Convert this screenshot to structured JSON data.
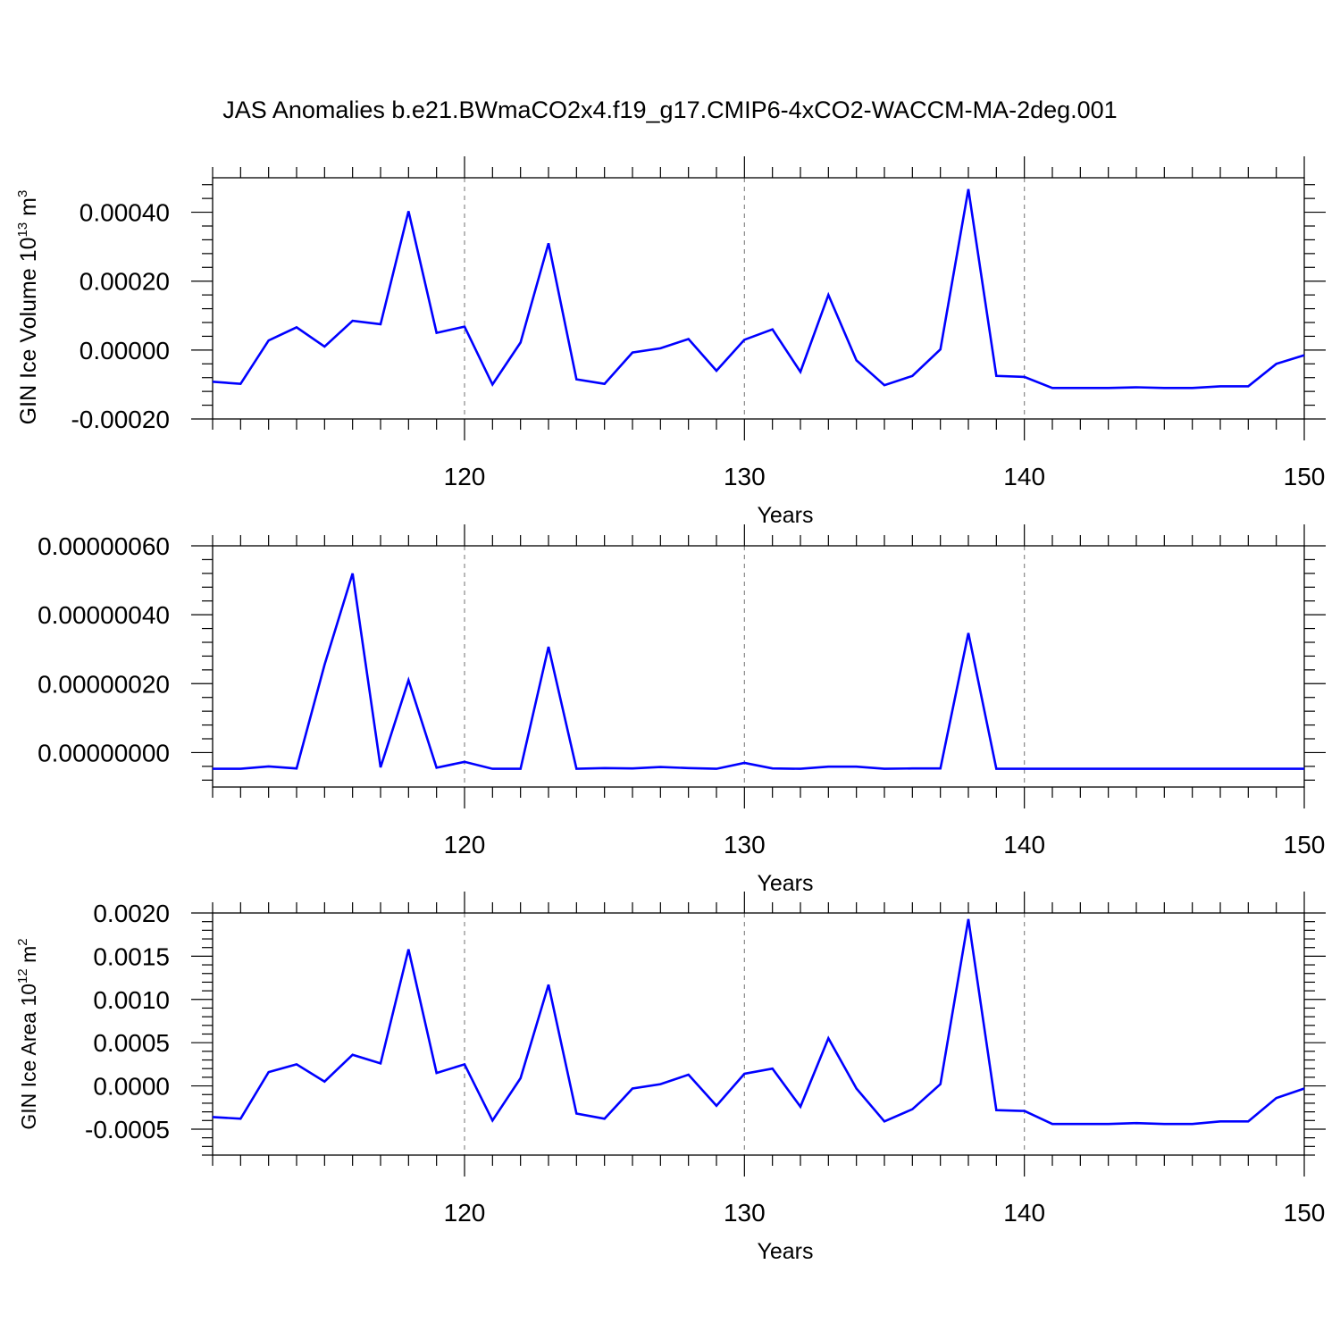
{
  "title": "JAS Anomalies b.e21.BWmaCO2x4.f19_g17.CMIP6-4xCO2-WACCM-MA-2deg.001",
  "line_color": "#0000ff",
  "chart_data": [
    {
      "type": "line",
      "xlabel": "Years",
      "ylabel_main": "GIN Ice Volume 10",
      "ylabel_exp": "13",
      "ylabel_unit": " m",
      "ylabel_unit_exp": "3",
      "xlim": [
        111,
        150
      ],
      "ylim": [
        -0.0002,
        0.0005
      ],
      "xticks": [
        120,
        130,
        140,
        150
      ],
      "xtick_labels": [
        "120",
        "130",
        "140",
        "150"
      ],
      "yticks": [
        -0.0002,
        0.0,
        0.0002,
        0.0004
      ],
      "ytick_labels": [
        "-0.00020",
        "0.00000",
        "0.00020",
        "0.00040"
      ],
      "x": [
        111,
        112,
        113,
        114,
        115,
        116,
        117,
        118,
        119,
        120,
        121,
        122,
        123,
        124,
        125,
        126,
        127,
        128,
        129,
        130,
        131,
        132,
        133,
        134,
        135,
        136,
        137,
        138,
        139,
        140,
        141,
        142,
        143,
        144,
        145,
        146,
        147,
        148,
        149,
        150
      ],
      "y": [
        -9.2e-05,
        -9.8e-05,
        2.8e-05,
        6.6e-05,
        1e-05,
        8.5e-05,
        7.5e-05,
        0.000403,
        5e-05,
        6.8e-05,
        -0.0001,
        2.2e-05,
        0.00031,
        -8.5e-05,
        -9.8e-05,
        -7e-06,
        5e-06,
        3.2e-05,
        -6e-05,
        3e-05,
        6e-05,
        -6.3e-05,
        0.00016,
        -3e-05,
        -0.000102,
        -7.5e-05,
        2e-06,
        0.000467,
        -7.5e-05,
        -7.8e-05,
        -0.00011,
        -0.00011,
        -0.00011,
        -0.000108,
        -0.00011,
        -0.00011,
        -0.000105,
        -0.000105,
        -4e-05,
        -1.5e-05
      ]
    },
    {
      "type": "line",
      "xlabel": "Years",
      "xlim": [
        111,
        150
      ],
      "ylim": [
        -1e-07,
        6e-07
      ],
      "xticks": [
        120,
        130,
        140,
        150
      ],
      "xtick_labels": [
        "120",
        "130",
        "140",
        "150"
      ],
      "yticks": [
        0.0,
        2e-07,
        4e-07,
        6e-07
      ],
      "ytick_labels": [
        "0.00000000",
        "0.00000020",
        "0.00000040",
        "0.00000060"
      ],
      "x": [
        111,
        112,
        113,
        114,
        115,
        116,
        117,
        118,
        119,
        120,
        121,
        122,
        123,
        124,
        125,
        126,
        127,
        128,
        129,
        130,
        131,
        132,
        133,
        134,
        135,
        136,
        137,
        138,
        139,
        140,
        141,
        142,
        143,
        144,
        145,
        146,
        147,
        148,
        149,
        150
      ],
      "y": [
        -4.7e-08,
        -4.7e-08,
        -4e-08,
        -4.6e-08,
        2.55e-07,
        5.2e-07,
        -4.3e-08,
        2.1e-07,
        -4.4e-08,
        -2.7e-08,
        -4.7e-08,
        -4.7e-08,
        3.07e-07,
        -4.7e-08,
        -4.5e-08,
        -4.6e-08,
        -4.2e-08,
        -4.5e-08,
        -4.7e-08,
        -3e-08,
        -4.6e-08,
        -4.7e-08,
        -4.1e-08,
        -4.1e-08,
        -4.7e-08,
        -4.6e-08,
        -4.6e-08,
        3.47e-07,
        -4.7e-08,
        -4.7e-08,
        -4.7e-08,
        -4.7e-08,
        -4.7e-08,
        -4.7e-08,
        -4.7e-08,
        -4.7e-08,
        -4.7e-08,
        -4.7e-08,
        -4.7e-08,
        -4.7e-08
      ]
    },
    {
      "type": "line",
      "xlabel": "Years",
      "ylabel_main": "GIN Ice Area 10",
      "ylabel_exp": "12",
      "ylabel_unit": " m",
      "ylabel_unit_exp": "2",
      "xlim": [
        111,
        150
      ],
      "ylim": [
        -0.0008,
        0.002
      ],
      "xticks": [
        120,
        130,
        140,
        150
      ],
      "xtick_labels": [
        "120",
        "130",
        "140",
        "150"
      ],
      "yticks": [
        -0.0005,
        0.0,
        0.0005,
        0.001,
        0.0015,
        0.002
      ],
      "ytick_labels": [
        "-0.0005",
        "0.0000",
        "0.0005",
        "0.0010",
        "0.0015",
        "0.0020"
      ],
      "x": [
        111,
        112,
        113,
        114,
        115,
        116,
        117,
        118,
        119,
        120,
        121,
        122,
        123,
        124,
        125,
        126,
        127,
        128,
        129,
        130,
        131,
        132,
        133,
        134,
        135,
        136,
        137,
        138,
        139,
        140,
        141,
        142,
        143,
        144,
        145,
        146,
        147,
        148,
        149,
        150
      ],
      "y": [
        -0.00036,
        -0.00038,
        0.00016,
        0.00025,
        5e-05,
        0.00036,
        0.00026,
        0.00158,
        0.00015,
        0.00025,
        -0.0004,
        9e-05,
        0.00117,
        -0.00032,
        -0.00038,
        -3e-05,
        2e-05,
        0.00013,
        -0.00023,
        0.00014,
        0.0002,
        -0.00024,
        0.00055,
        -3e-05,
        -0.00041,
        -0.00027,
        2e-05,
        0.00193,
        -0.00028,
        -0.00029,
        -0.00044,
        -0.00044,
        -0.00044,
        -0.00043,
        -0.00044,
        -0.00044,
        -0.00041,
        -0.00041,
        -0.00014,
        -3e-05
      ]
    }
  ]
}
